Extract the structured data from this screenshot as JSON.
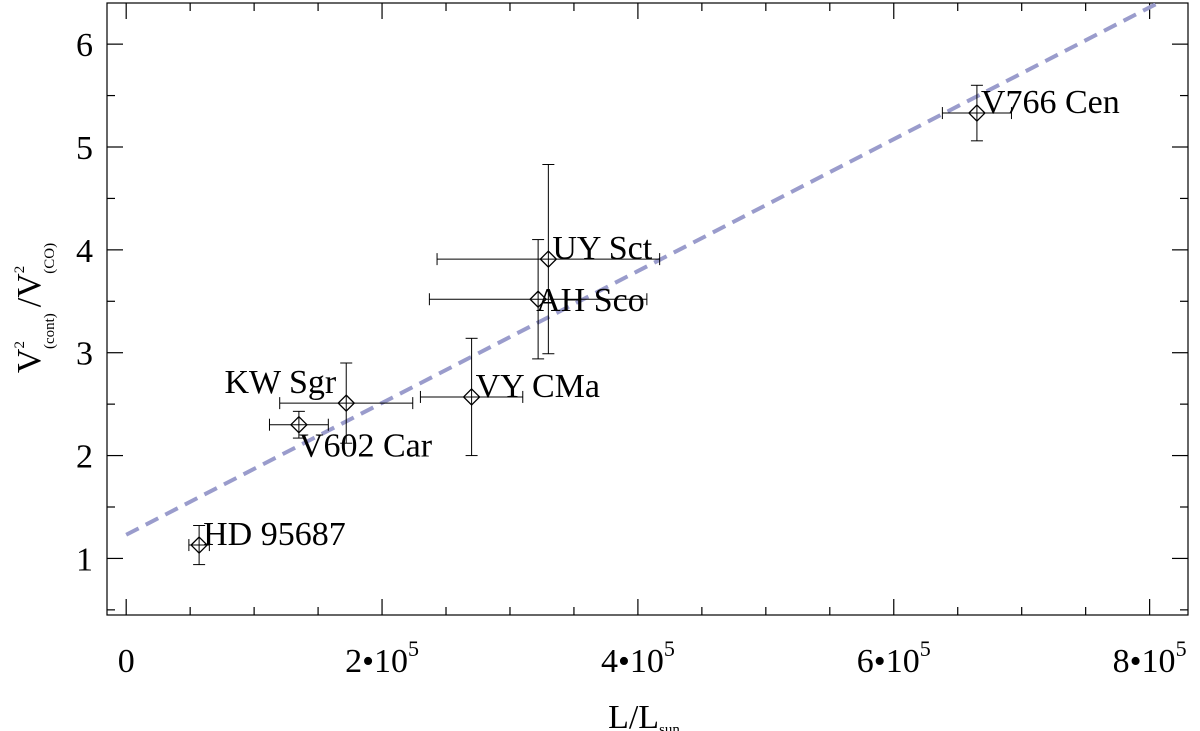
{
  "chart_data": {
    "type": "scatter",
    "xlabel": {
      "main": "L/L",
      "sub": "sun"
    },
    "ylabel": {
      "num": "V",
      "num_sup": "2",
      "num_sub": "(cont)",
      "sep": "/V",
      "den_sup": "2",
      "den_sub": "(CO)"
    },
    "xlim": [
      -15000,
      830000
    ],
    "ylim": [
      0.45,
      6.4
    ],
    "x_ticks": [
      {
        "value": 0,
        "label": "0",
        "exp": ""
      },
      {
        "value": 200000,
        "label": "2•10",
        "exp": "5"
      },
      {
        "value": 400000,
        "label": "4•10",
        "exp": "5"
      },
      {
        "value": 600000,
        "label": "6•10",
        "exp": "5"
      },
      {
        "value": 800000,
        "label": "8•10",
        "exp": "5"
      }
    ],
    "x_minor_step": 50000,
    "y_ticks": [
      1,
      2,
      3,
      4,
      5,
      6
    ],
    "y_minor_step": 0.5,
    "points": [
      {
        "name": "HD 95687",
        "x": 57000,
        "y": 1.13,
        "xerr": 8000,
        "yerr": 0.19,
        "label_pos": "right-above"
      },
      {
        "name": "V602 Car",
        "x": 135000,
        "y": 2.3,
        "xerr": 23000,
        "yerr": 0.13,
        "label_pos": "right-below"
      },
      {
        "name": "KW Sgr",
        "x": 172000,
        "y": 2.51,
        "xerr": 52000,
        "yerr": 0.39,
        "label_pos": "left-above"
      },
      {
        "name": "VY CMa",
        "x": 270000,
        "y": 2.57,
        "xerr": 40000,
        "yerr": 0.57,
        "label_pos": "right-above"
      },
      {
        "name": "AH Sco",
        "x": 322000,
        "y": 3.52,
        "xerr": 85000,
        "yerr": 0.58,
        "label_pos": "right"
      },
      {
        "name": "UY Sct",
        "x": 330000,
        "y": 3.91,
        "xerr": 87000,
        "yerr": 0.92,
        "label_pos": "right-above"
      },
      {
        "name": "V766 Cen",
        "x": 665000,
        "y": 5.33,
        "xerr": 27000,
        "yerr": 0.27,
        "label_pos": "right-above"
      }
    ],
    "fit": {
      "x1": 0,
      "y1": 1.23,
      "x2": 830000,
      "y2": 6.55
    },
    "grid": false,
    "legend": "none"
  }
}
